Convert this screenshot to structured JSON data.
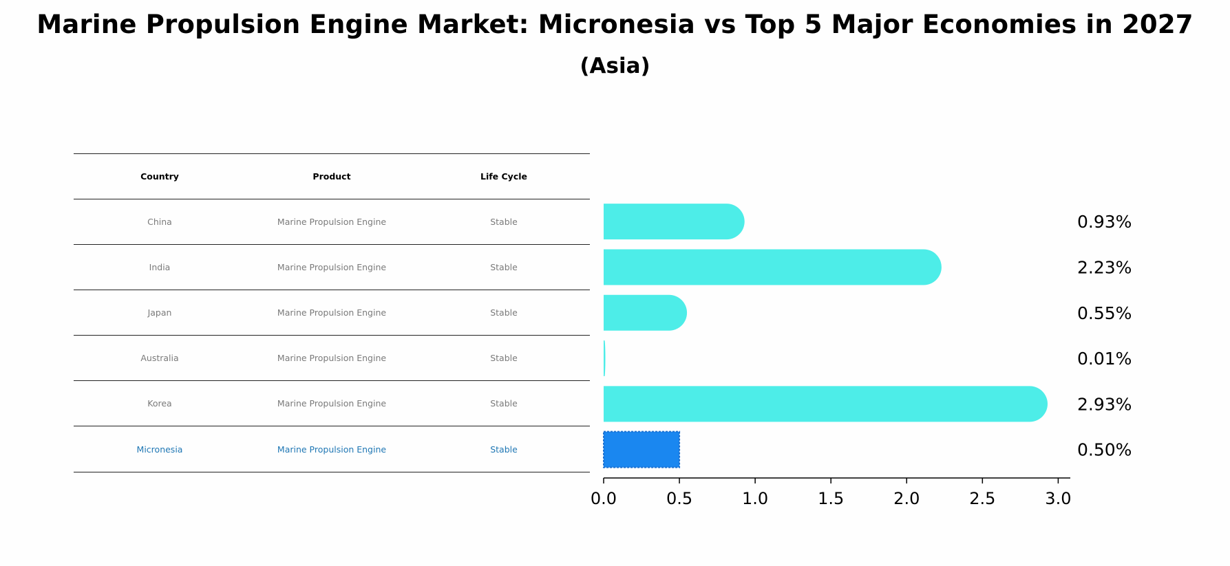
{
  "title": "Marine Propulsion Engine Market: Micronesia vs Top 5 Major Economies in 2027",
  "subtitle": "(Asia)",
  "table": {
    "headers": [
      "Country",
      "Product",
      "Life Cycle"
    ],
    "rows": [
      {
        "country": "China",
        "product": "Marine Propulsion Engine",
        "life_cycle": "Stable"
      },
      {
        "country": "India",
        "product": "Marine Propulsion Engine",
        "life_cycle": "Stable"
      },
      {
        "country": "Japan",
        "product": "Marine Propulsion Engine",
        "life_cycle": "Stable"
      },
      {
        "country": "Australia",
        "product": "Marine Propulsion Engine",
        "life_cycle": "Stable"
      },
      {
        "country": "Korea",
        "product": "Marine Propulsion Engine",
        "life_cycle": "Stable"
      },
      {
        "country": "Micronesia",
        "product": "Marine Propulsion Engine",
        "life_cycle": "Stable"
      }
    ],
    "highlight_color": "#1f77b4"
  },
  "chart_data": {
    "type": "bar",
    "orientation": "horizontal",
    "categories": [
      "China",
      "India",
      "Japan",
      "Australia",
      "Korea",
      "Micronesia"
    ],
    "values": [
      0.93,
      2.23,
      0.55,
      0.01,
      2.93,
      0.5
    ],
    "value_labels": [
      "0.93%",
      "2.23%",
      "0.55%",
      "0.01%",
      "2.93%",
      "0.50%"
    ],
    "xlim": [
      0,
      3.08
    ],
    "xticks": [
      "0.0",
      "0.5",
      "1.0",
      "1.5",
      "2.0",
      "2.5",
      "3.0"
    ],
    "grid": false,
    "colors": {
      "bar": "#4dede8",
      "highlight_bar": "#1a87f0",
      "highlight_edge": "#1a6fd0"
    },
    "highlight_index": 5
  }
}
